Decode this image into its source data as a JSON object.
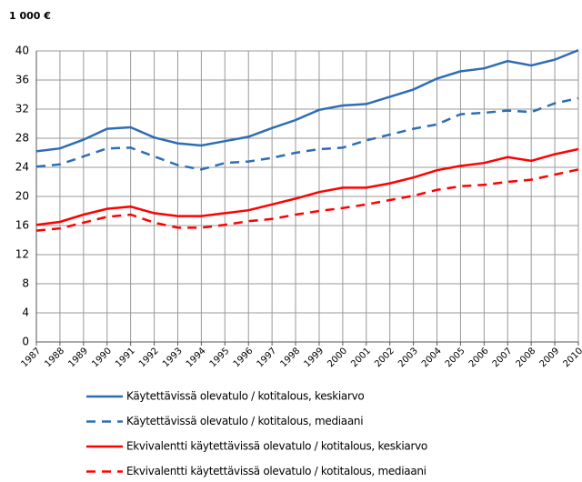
{
  "chart_data": {
    "type": "line",
    "y_label": "1 000 €",
    "categories": [
      "1987",
      "1988",
      "1989",
      "1990",
      "1991",
      "1992",
      "1993",
      "1994",
      "1995",
      "1996",
      "1997",
      "1998",
      "1999",
      "2000",
      "2001",
      "2002",
      "2003",
      "2004",
      "2005",
      "2006",
      "2007",
      "2008",
      "2009",
      "2010"
    ],
    "series": [
      {
        "name": "Käytettävissä olevatulo / kotitalous, keskiarvo",
        "color": "#2e6db4",
        "dash": false,
        "values": [
          26.2,
          26.6,
          27.8,
          29.3,
          29.5,
          28.1,
          27.3,
          27.0,
          27.6,
          28.2,
          29.4,
          30.5,
          31.9,
          32.5,
          32.7,
          33.7,
          34.7,
          36.2,
          37.2,
          37.6,
          38.6,
          38.0,
          38.8,
          40.1
        ]
      },
      {
        "name": "Käytettävissä olevatulo / kotitalous, mediaani",
        "color": "#2e6db4",
        "dash": true,
        "values": [
          24.1,
          24.4,
          25.5,
          26.6,
          26.7,
          25.5,
          24.3,
          23.7,
          24.6,
          24.8,
          25.3,
          26.0,
          26.5,
          26.7,
          27.7,
          28.5,
          29.3,
          29.9,
          31.3,
          31.5,
          31.8,
          31.6,
          32.8,
          33.5
        ]
      },
      {
        "name": "Ekvivalentti käytettävissä olevatulo / kotitalous, keskiarvo",
        "color": "#ff0000",
        "dash": false,
        "values": [
          16.1,
          16.5,
          17.5,
          18.3,
          18.6,
          17.7,
          17.3,
          17.3,
          17.7,
          18.1,
          18.9,
          19.7,
          20.6,
          21.2,
          21.2,
          21.8,
          22.6,
          23.6,
          24.2,
          24.6,
          25.4,
          24.9,
          25.8,
          26.5
        ]
      },
      {
        "name": "Ekvivalentti käytettävissä olevatulo / kotitalous, mediaani",
        "color": "#ff0000",
        "dash": true,
        "values": [
          15.3,
          15.6,
          16.4,
          17.2,
          17.5,
          16.4,
          15.7,
          15.7,
          16.1,
          16.6,
          16.9,
          17.5,
          18.0,
          18.4,
          18.9,
          19.5,
          20.1,
          20.9,
          21.4,
          21.6,
          22.0,
          22.3,
          23.0,
          23.7
        ]
      }
    ],
    "ylim": [
      0,
      40
    ],
    "yticks": [
      0,
      4,
      8,
      12,
      16,
      20,
      24,
      28,
      32,
      36,
      40
    ],
    "grid": true
  }
}
